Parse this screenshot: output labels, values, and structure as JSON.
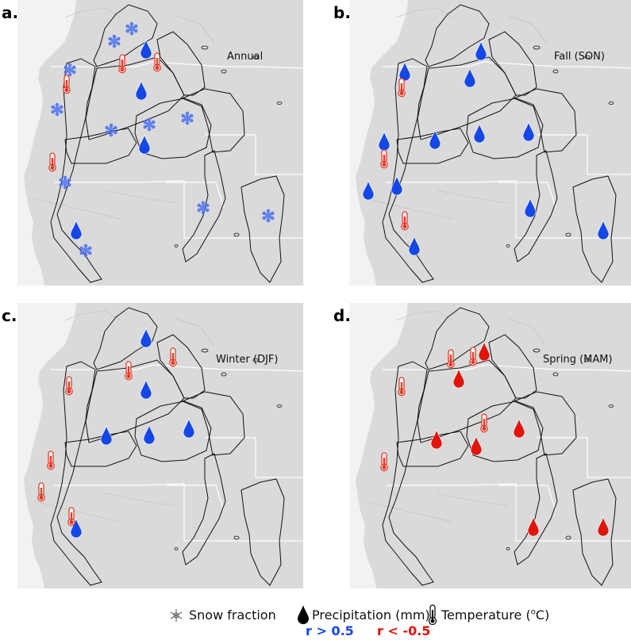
{
  "colors": {
    "positive": "#1447e6",
    "negative": "#e0140a",
    "snow": "#5577ee",
    "thermo_fill": "#e23b2a",
    "land": "#dadada",
    "ocean": "#f2f2f2",
    "basin_line": "#111111",
    "border_line": "#ffffff"
  },
  "panels": [
    {
      "letter": "a.",
      "season": "Annual",
      "markers": [
        {
          "type": "snow",
          "color": "snow"
        },
        {
          "type": "snow",
          "color": "snow"
        },
        {
          "type": "snow",
          "color": "snow"
        },
        {
          "type": "snow",
          "color": "snow"
        },
        {
          "type": "snow",
          "color": "snow"
        },
        {
          "type": "snow",
          "color": "snow"
        },
        {
          "type": "snow",
          "color": "snow"
        },
        {
          "type": "snow",
          "color": "snow"
        },
        {
          "type": "snow",
          "color": "snow"
        },
        {
          "type": "snow",
          "color": "snow"
        },
        {
          "type": "snow",
          "color": "snow"
        },
        {
          "type": "drop",
          "color": "positive"
        },
        {
          "type": "drop",
          "color": "positive"
        },
        {
          "type": "drop",
          "color": "positive"
        },
        {
          "type": "drop",
          "color": "positive"
        },
        {
          "type": "thermo",
          "color": "negative"
        },
        {
          "type": "thermo",
          "color": "negative"
        },
        {
          "type": "thermo",
          "color": "negative"
        },
        {
          "type": "thermo",
          "color": "negative"
        }
      ]
    },
    {
      "letter": "b.",
      "season": "Fall (SON)",
      "markers": [
        {
          "type": "drop",
          "color": "positive"
        },
        {
          "type": "drop",
          "color": "positive"
        },
        {
          "type": "drop",
          "color": "positive"
        },
        {
          "type": "drop",
          "color": "positive"
        },
        {
          "type": "drop",
          "color": "positive"
        },
        {
          "type": "drop",
          "color": "positive"
        },
        {
          "type": "drop",
          "color": "positive"
        },
        {
          "type": "drop",
          "color": "positive"
        },
        {
          "type": "drop",
          "color": "positive"
        },
        {
          "type": "drop",
          "color": "positive"
        },
        {
          "type": "drop",
          "color": "positive"
        },
        {
          "type": "drop",
          "color": "positive"
        },
        {
          "type": "thermo",
          "color": "negative"
        },
        {
          "type": "thermo",
          "color": "negative"
        },
        {
          "type": "thermo",
          "color": "negative"
        }
      ]
    },
    {
      "letter": "c.",
      "season": "Winter (DJF)",
      "markers": [
        {
          "type": "drop",
          "color": "positive"
        },
        {
          "type": "drop",
          "color": "positive"
        },
        {
          "type": "drop",
          "color": "positive"
        },
        {
          "type": "drop",
          "color": "positive"
        },
        {
          "type": "drop",
          "color": "positive"
        },
        {
          "type": "drop",
          "color": "positive"
        },
        {
          "type": "thermo",
          "color": "negative"
        },
        {
          "type": "thermo",
          "color": "negative"
        },
        {
          "type": "thermo",
          "color": "negative"
        },
        {
          "type": "thermo",
          "color": "negative"
        },
        {
          "type": "thermo",
          "color": "negative"
        },
        {
          "type": "thermo",
          "color": "negative"
        }
      ]
    },
    {
      "letter": "d.",
      "season": "Spring (MAM)",
      "markers": [
        {
          "type": "drop",
          "color": "negative"
        },
        {
          "type": "drop",
          "color": "negative"
        },
        {
          "type": "drop",
          "color": "negative"
        },
        {
          "type": "drop",
          "color": "negative"
        },
        {
          "type": "drop",
          "color": "negative"
        },
        {
          "type": "drop",
          "color": "negative"
        },
        {
          "type": "drop",
          "color": "negative"
        },
        {
          "type": "thermo",
          "color": "negative"
        },
        {
          "type": "thermo",
          "color": "negative"
        },
        {
          "type": "thermo",
          "color": "negative"
        },
        {
          "type": "thermo",
          "color": "negative"
        },
        {
          "type": "thermo",
          "color": "negative"
        }
      ]
    }
  ],
  "legend": {
    "snow_label": "Snow fraction",
    "precip_label": "Precipitation (mm)",
    "temp_label_prefix": "Temperature (",
    "temp_label_super": "o",
    "temp_label_suffix": "C)",
    "pos_threshold": "r > 0.5",
    "neg_threshold": "r < -0.5"
  }
}
